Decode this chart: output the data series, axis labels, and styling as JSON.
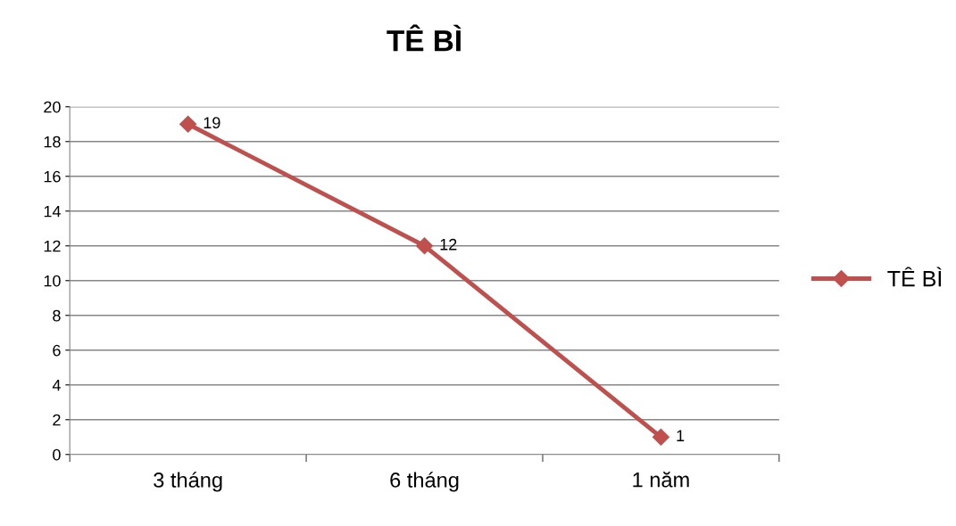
{
  "chart_data": {
    "type": "line",
    "title": "TÊ BÌ",
    "categories": [
      "3 tháng",
      "6 tháng",
      "1 năm"
    ],
    "series": [
      {
        "name": "TÊ BÌ",
        "color": "#c0504d",
        "values": [
          19,
          12,
          1
        ]
      }
    ],
    "ylim": [
      0,
      20
    ],
    "yticks": [
      0,
      2,
      4,
      6,
      8,
      10,
      12,
      14,
      16,
      18,
      20
    ],
    "grid": "y",
    "legend": "right",
    "marker": "diamond",
    "line_style": "solid",
    "data_labels": true
  }
}
